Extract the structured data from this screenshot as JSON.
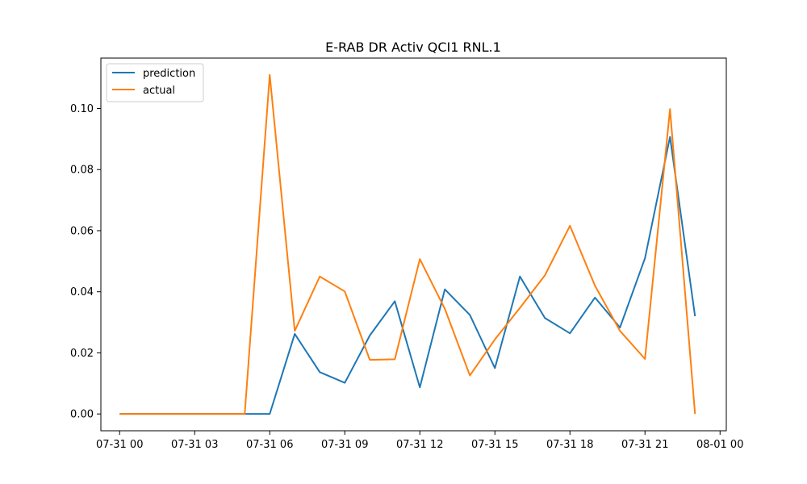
{
  "chart_data": {
    "type": "line",
    "title": "E-RAB DR Activ QCI1 RNL.1",
    "xlabel": "",
    "ylabel": "",
    "x": [
      "07-31 00:00",
      "07-31 01:00",
      "07-31 02:00",
      "07-31 03:00",
      "07-31 04:00",
      "07-31 05:00",
      "07-31 06:00",
      "07-31 07:00",
      "07-31 08:00",
      "07-31 09:00",
      "07-31 10:00",
      "07-31 11:00",
      "07-31 12:00",
      "07-31 13:00",
      "07-31 14:00",
      "07-31 15:00",
      "07-31 16:00",
      "07-31 17:00",
      "07-31 18:00",
      "07-31 19:00",
      "07-31 20:00",
      "07-31 21:00",
      "07-31 22:00",
      "07-31 23:00"
    ],
    "series": [
      {
        "name": "prediction",
        "color": "#1f77b4",
        "values": [
          0.0,
          0.0,
          0.0,
          0.0,
          0.0,
          0.0,
          0.0,
          0.0262,
          0.0137,
          0.0102,
          0.0257,
          0.0369,
          0.0087,
          0.0408,
          0.0324,
          0.015,
          0.045,
          0.0314,
          0.0264,
          0.0381,
          0.0283,
          0.051,
          0.0907,
          0.032
        ]
      },
      {
        "name": "actual",
        "color": "#ff7f0e",
        "values": [
          0.0,
          0.0,
          0.0,
          0.0,
          0.0,
          0.0,
          0.111,
          0.0272,
          0.045,
          0.0401,
          0.0177,
          0.0179,
          0.0507,
          0.0344,
          0.0126,
          0.0244,
          0.0347,
          0.0454,
          0.0616,
          0.042,
          0.0272,
          0.018,
          0.0998,
          0.0
        ]
      }
    ],
    "xticks": [
      "07-31 00",
      "07-31 03",
      "07-31 06",
      "07-31 09",
      "07-31 12",
      "07-31 15",
      "07-31 18",
      "07-31 21",
      "08-01 00"
    ],
    "yticks": [
      "0.00",
      "0.02",
      "0.04",
      "0.06",
      "0.08",
      "0.10"
    ],
    "xlim": [
      "07-30 23:15",
      "08-01 00:15"
    ],
    "ylim": [
      -0.0055,
      0.1165
    ],
    "grid": false,
    "legend_position": "top-left"
  }
}
